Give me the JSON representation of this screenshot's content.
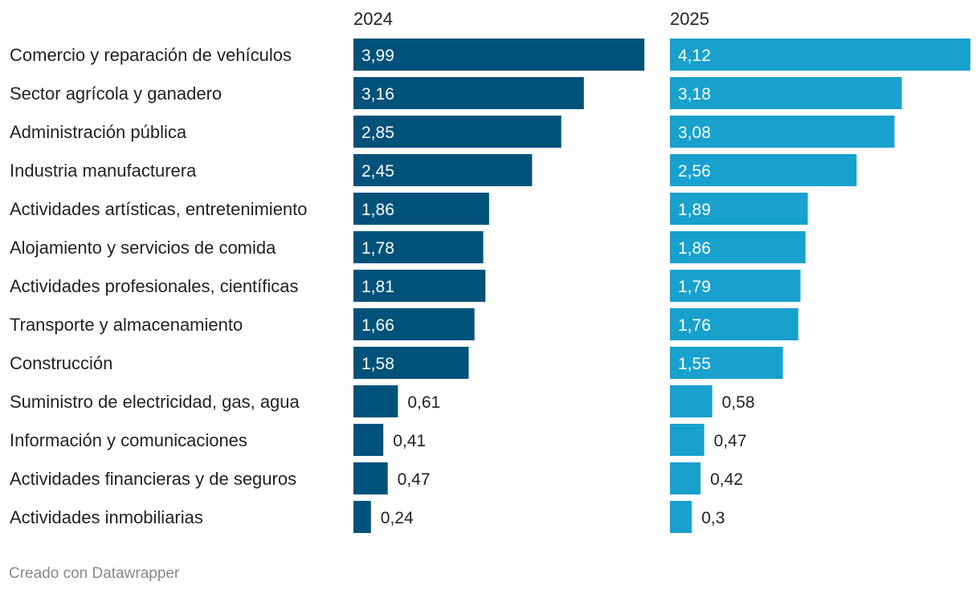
{
  "chart_data": {
    "type": "bar",
    "orientation": "horizontal",
    "layout": "small-multiples",
    "categories": [
      "Comercio y reparación de vehículos",
      "Sector agrícola y ganadero",
      "Administración pública",
      "Industria manufacturera",
      "Actividades artísticas, entretenimiento",
      "Alojamiento y servicios de comida",
      "Actividades profesionales, científicas",
      "Transporte y almacenamiento",
      "Construcción",
      "Suministro de electricidad, gas, agua",
      "Información y comunicaciones",
      "Actividades financieras y de seguros",
      "Actividades inmobiliarias"
    ],
    "series": [
      {
        "name": "2024",
        "color": "#00527a",
        "values": [
          3.99,
          3.16,
          2.85,
          2.45,
          1.86,
          1.78,
          1.81,
          1.66,
          1.58,
          0.61,
          0.41,
          0.47,
          0.24
        ],
        "labels": [
          "3,99",
          "3,16",
          "2,85",
          "2,45",
          "1,86",
          "1,78",
          "1,81",
          "1,66",
          "1,58",
          "0,61",
          "0,41",
          "0,47",
          "0,24"
        ]
      },
      {
        "name": "2025",
        "color": "#18a1cd",
        "values": [
          4.12,
          3.18,
          3.08,
          2.56,
          1.89,
          1.86,
          1.79,
          1.76,
          1.55,
          0.58,
          0.47,
          0.42,
          0.3
        ],
        "labels": [
          "4,12",
          "3,18",
          "3,08",
          "2,56",
          "1,89",
          "1,86",
          "1,79",
          "1,76",
          "1,55",
          "0,58",
          "0,47",
          "0,42",
          "0,3"
        ]
      }
    ],
    "xlim": [
      0,
      4.12
    ],
    "label_inside_threshold": 1.0
  },
  "footer": {
    "credit": "Creado con Datawrapper"
  }
}
